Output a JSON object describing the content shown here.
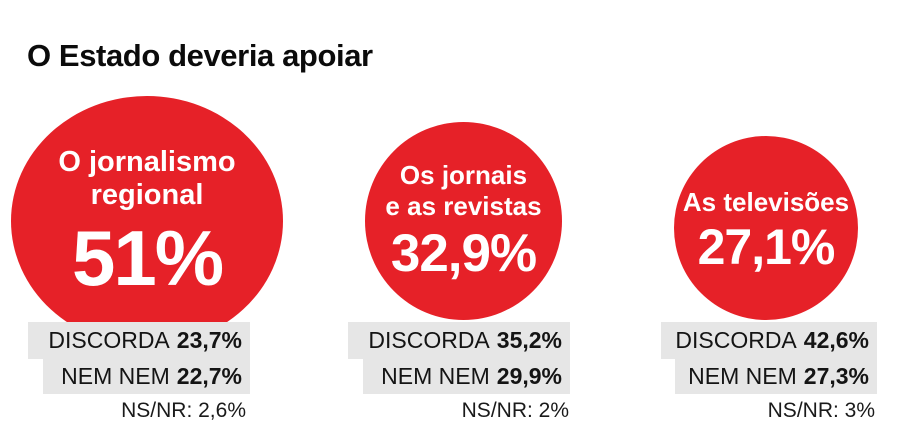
{
  "title": "O Estado deveria apoiar",
  "colors": {
    "bubble_red": "#E62128",
    "stat_box_gray": "#E6E6E6",
    "text_dark": "#0b0b0b",
    "bubble_text": "#ffffff"
  },
  "chart_data": {
    "type": "bar",
    "subtype": "proportional-circles",
    "title": "O Estado deveria apoiar",
    "categories": [
      "O jornalismo regional",
      "Os jornais e as revistas",
      "As televisões"
    ],
    "series": [
      {
        "name": "valor principal (círculo)",
        "values": [
          51,
          32.9,
          27.1
        ]
      },
      {
        "name": "DISCORDA",
        "values": [
          23.7,
          35.2,
          42.6
        ]
      },
      {
        "name": "NEM NEM",
        "values": [
          22.7,
          29.9,
          27.3
        ]
      },
      {
        "name": "NS/NR",
        "values": [
          2.6,
          2,
          3
        ]
      }
    ],
    "value_unit": "%",
    "legend_position": "none",
    "grid": false
  },
  "columns": [
    {
      "bubble": {
        "label_lines": [
          "O jornalismo",
          "regional"
        ],
        "value": "51%"
      },
      "discorda": {
        "label": "DISCORDA",
        "value": "23,7%"
      },
      "nem_nem": {
        "label": "NEM NEM",
        "value": "22,7%"
      },
      "ns_nr": "NS/NR: 2,6%"
    },
    {
      "bubble": {
        "label_lines": [
          "Os jornais",
          "e as revistas"
        ],
        "value": "32,9%"
      },
      "discorda": {
        "label": "DISCORDA",
        "value": "35,2%"
      },
      "nem_nem": {
        "label": "NEM NEM",
        "value": "29,9%"
      },
      "ns_nr": "NS/NR: 2%"
    },
    {
      "bubble": {
        "label_lines": [
          "As televisões"
        ],
        "value": "27,1%"
      },
      "discorda": {
        "label": "DISCORDA",
        "value": "42,6%"
      },
      "nem_nem": {
        "label": "NEM NEM",
        "value": "27,3%"
      },
      "ns_nr": "NS/NR: 3%"
    }
  ]
}
